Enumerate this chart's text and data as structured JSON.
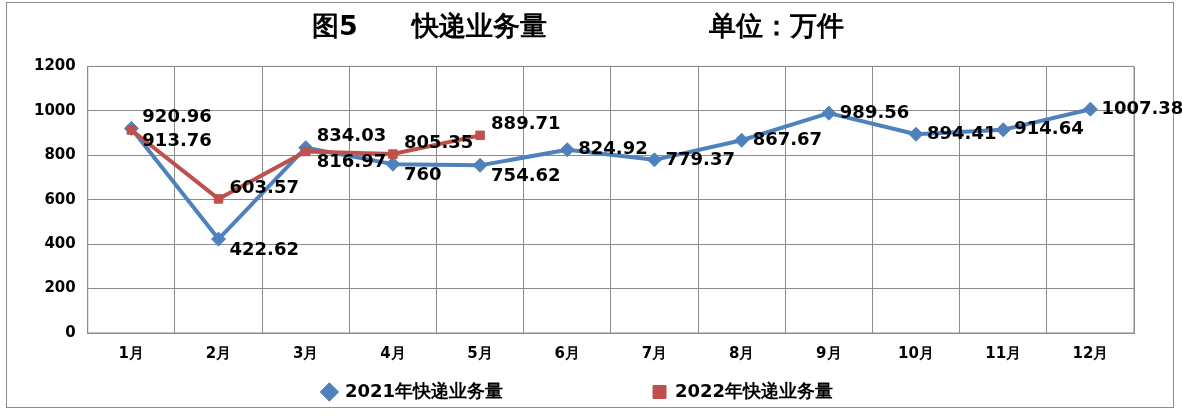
{
  "chart_data": {
    "type": "line",
    "title": "图5　　快递业务量　　　　　　单位：万件",
    "categories": [
      "1月",
      "2月",
      "3月",
      "4月",
      "5月",
      "6月",
      "7月",
      "8月",
      "9月",
      "10月",
      "11月",
      "12月"
    ],
    "series": [
      {
        "name": "2021年快递业务量",
        "color": "#4f81bd",
        "marker": "diamond",
        "values": [
          920.96,
          422.62,
          834.03,
          760,
          754.62,
          824.92,
          779.37,
          867.67,
          989.56,
          894.41,
          914.64,
          1007.38
        ]
      },
      {
        "name": "2022年快递业务量",
        "color": "#c0504d",
        "marker": "square",
        "values": [
          913.76,
          603.57,
          816.97,
          805.35,
          889.71,
          null,
          null,
          null,
          null,
          null,
          null,
          null
        ]
      }
    ],
    "ylim": [
      0,
      1200
    ],
    "yticks": [
      0,
      200,
      400,
      600,
      800,
      1000,
      1200
    ],
    "grid": true,
    "legend": "bottom",
    "data_labels": true
  }
}
